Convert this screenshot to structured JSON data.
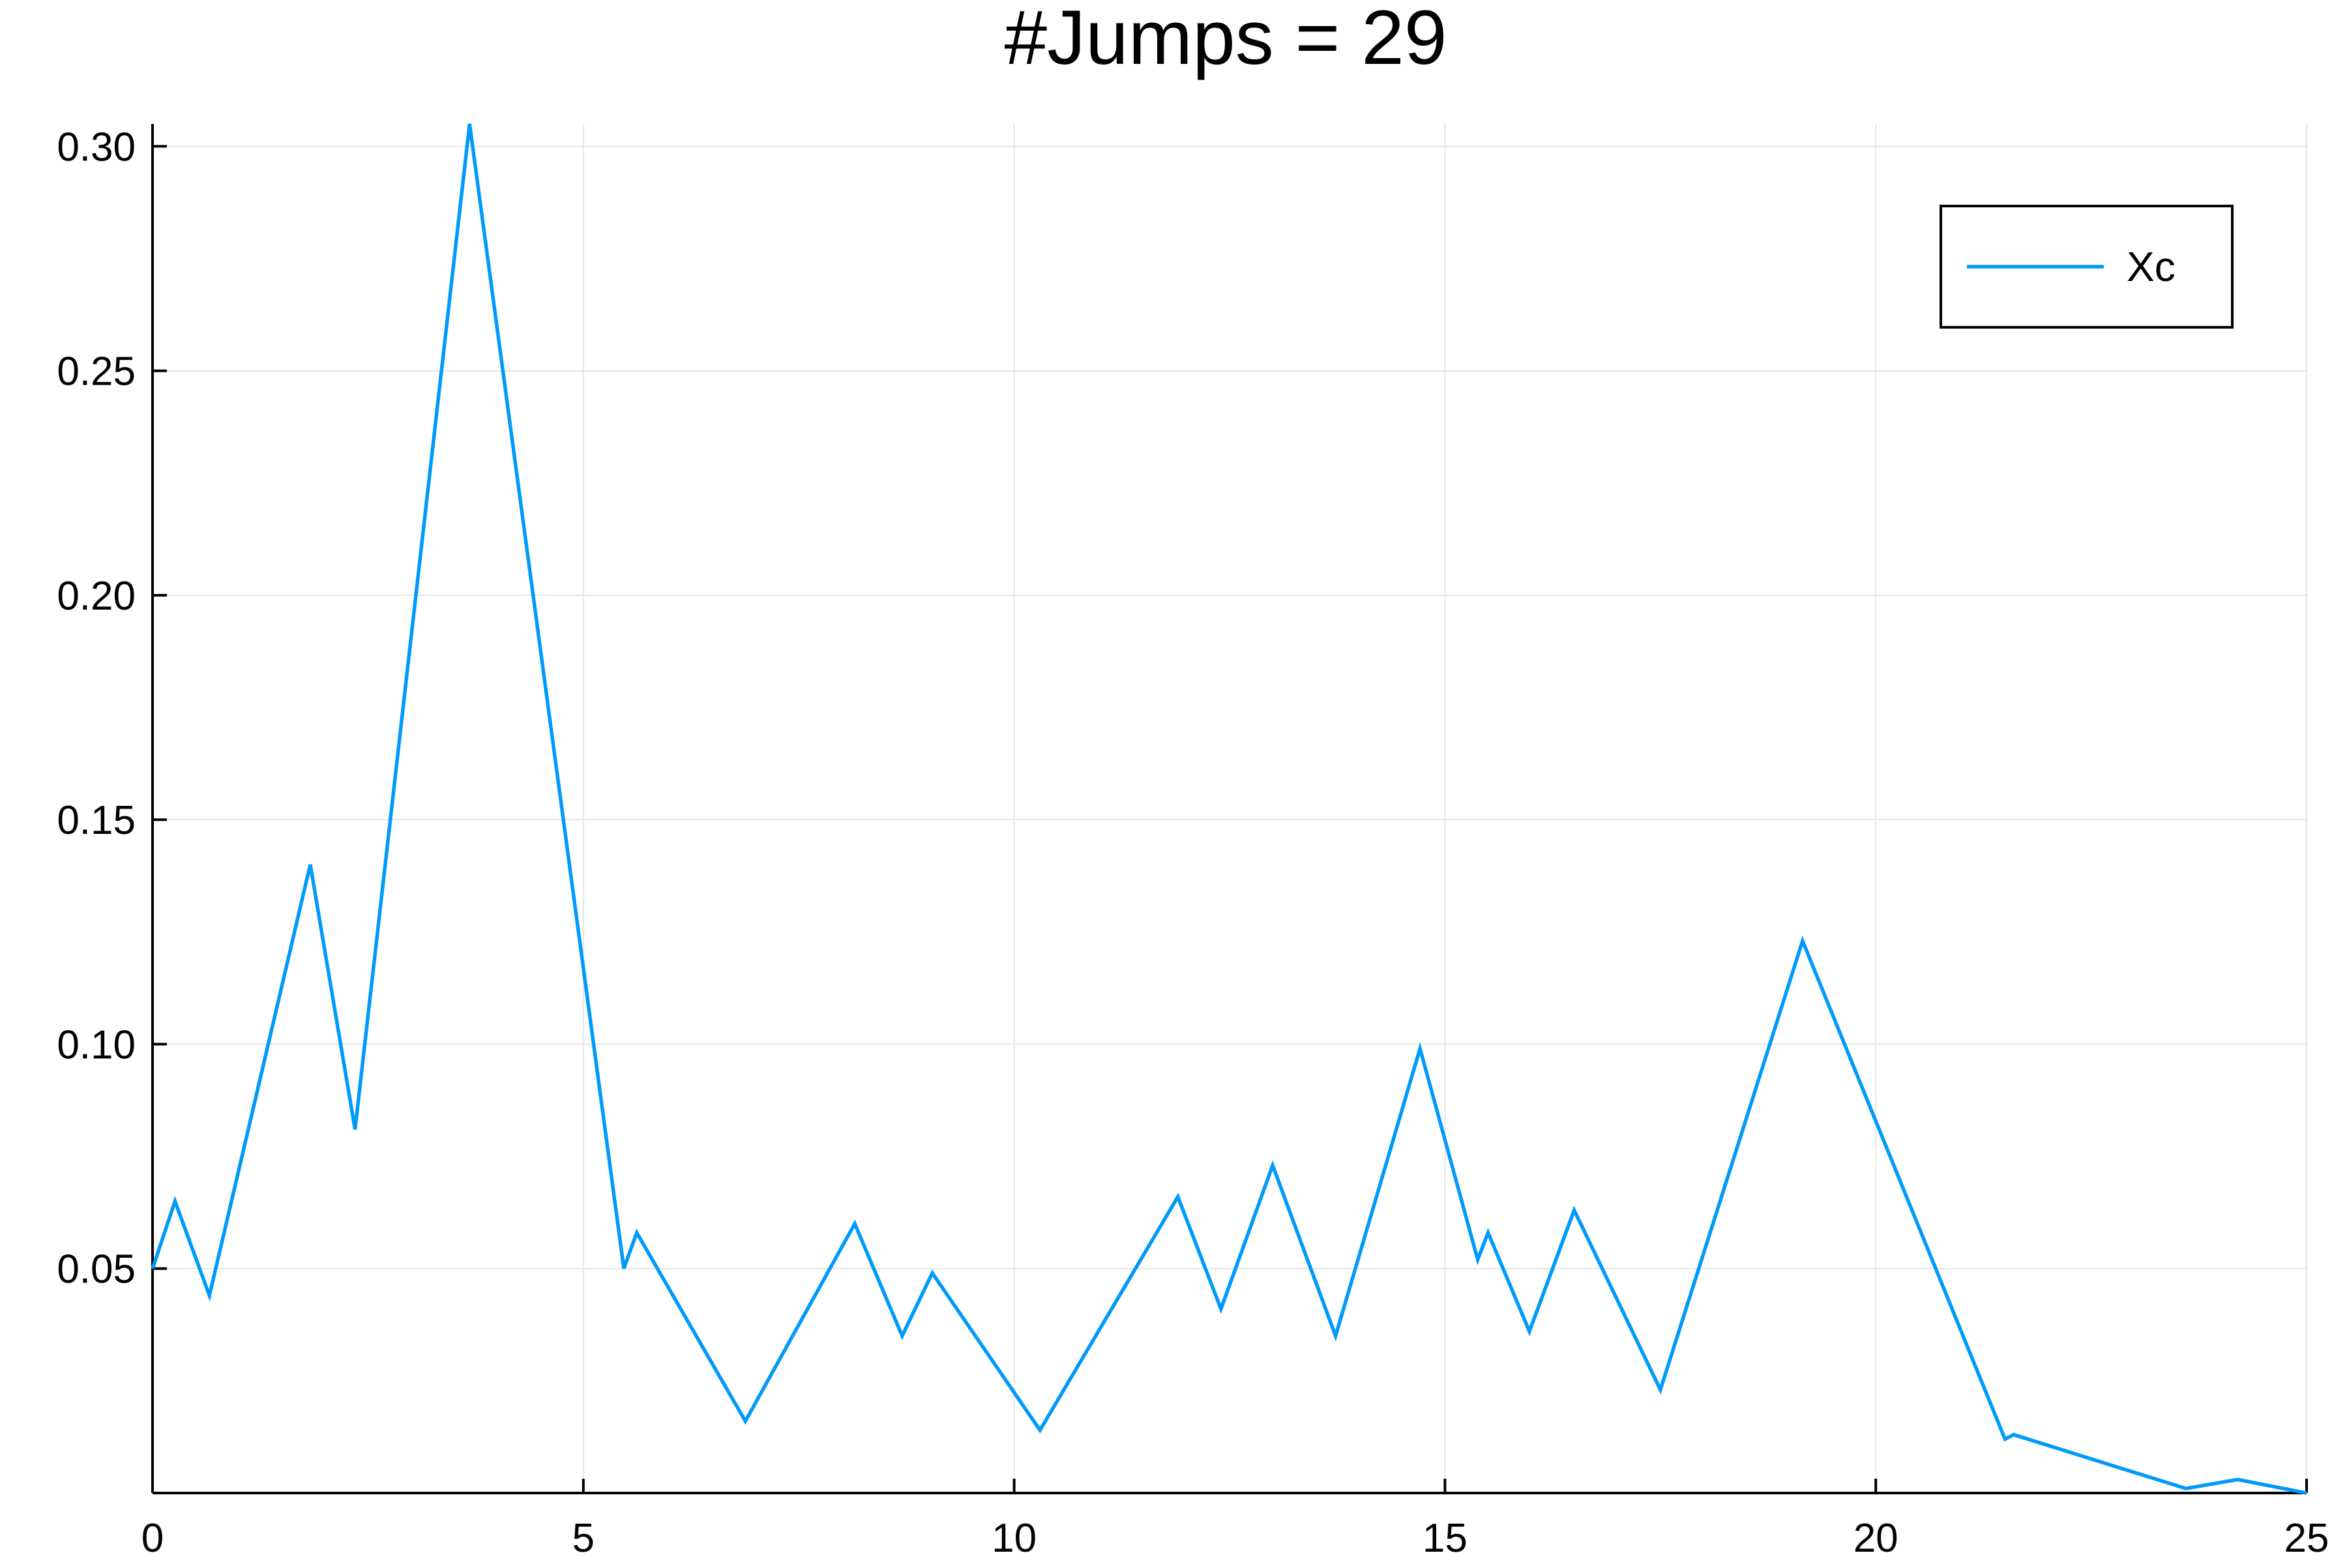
{
  "chart_data": {
    "type": "line",
    "title": "#Jumps = 29",
    "xlabel": "",
    "ylabel": "",
    "xlim": [
      0,
      25
    ],
    "ylim": [
      0,
      0.305
    ],
    "x_ticks": [
      0,
      5,
      10,
      15,
      20,
      25
    ],
    "x_tick_labels": [
      "0",
      "5",
      "10",
      "15",
      "20",
      "25"
    ],
    "y_ticks": [
      0.05,
      0.1,
      0.15,
      0.2,
      0.25,
      0.3
    ],
    "y_tick_labels": [
      "0.05",
      "0.10",
      "0.15",
      "0.20",
      "0.25",
      "0.30"
    ],
    "grid": true,
    "legend_position": "top-right",
    "series": [
      {
        "name": "Xc",
        "color": "#009AFA",
        "x": [
          0,
          0.26,
          0.66,
          1.83,
          2.35,
          3.68,
          5.47,
          5.62,
          6.88,
          8.15,
          8.7,
          9.05,
          10.3,
          11.9,
          12.4,
          13.0,
          13.73,
          14.71,
          15.38,
          15.5,
          15.98,
          16.5,
          17.5,
          19.15,
          21.5,
          21.6,
          23.6,
          24.2,
          25.0
        ],
        "y": [
          0.05,
          0.065,
          0.044,
          0.14,
          0.081,
          0.305,
          0.05,
          0.058,
          0.016,
          0.06,
          0.035,
          0.049,
          0.014,
          0.066,
          0.041,
          0.073,
          0.035,
          0.099,
          0.052,
          0.058,
          0.036,
          0.063,
          0.023,
          0.123,
          0.012,
          0.013,
          0.001,
          0.003,
          0.0
        ]
      }
    ]
  }
}
